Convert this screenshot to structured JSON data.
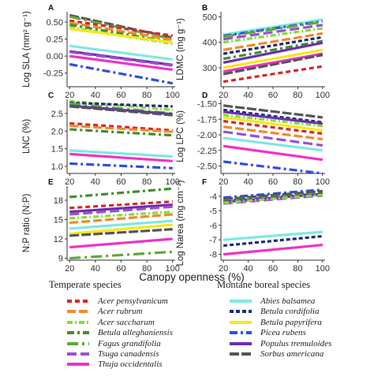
{
  "figure": {
    "xlabel": "Canopy openness (%)"
  },
  "legend": {
    "groups": [
      {
        "title": "Temperate species",
        "species": [
          "Acer pensylvanicum",
          "Acer rubrum",
          "Acer saccharum",
          "Betula alleghaniensis",
          "Fagus grandifolia",
          "Tsuga canadensis",
          "Thuja occidentalis"
        ]
      },
      {
        "title": "Montane boreal species",
        "species": [
          "Abies balsamea",
          "Betula cordifolia",
          "Betula papyrifera",
          "Picea rubens",
          "Populus tremuloides",
          "Sorbus americana"
        ]
      }
    ]
  },
  "styles": {
    "Acer pensylvanicum": {
      "color": "#d62728",
      "dash": "6,4"
    },
    "Acer rubrum": {
      "color": "#f08a2b",
      "dash": "11,4"
    },
    "Acer saccharum": {
      "color": "#7fe034",
      "dash": "7,3,2,3"
    },
    "Betula alleghaniensis": {
      "color": "#3f8f2a",
      "dash": "9,4,3,4"
    },
    "Fagus grandifolia": {
      "color": "#5fa83a",
      "dash": "14,5,3,5"
    },
    "Tsuga canadensis": {
      "color": "#9b4fd1",
      "dash": "12,5"
    },
    "Thuja occidentalis": {
      "color": "#f032c8",
      "dash": ""
    },
    "Abies balsamea": {
      "color": "#7fe8e0",
      "dash": ""
    },
    "Betula cordifolia": {
      "color": "#1f2a7a",
      "dash": "5,3"
    },
    "Betula papyrifera": {
      "color": "#f7e81a",
      "dash": ""
    },
    "Picea rubens": {
      "color": "#2f4fe0",
      "dash": "10,4,3,4"
    },
    "Populus tremuloides": {
      "color": "#6a2fb0",
      "dash": ""
    },
    "Sorbus americana": {
      "color": "#555555",
      "dash": "12,3"
    }
  },
  "chart_data": [
    {
      "type": "line",
      "panel": "A",
      "ylabel": "Log SLA (mm² g⁻¹)",
      "ylim": [
        -0.45,
        0.65
      ],
      "yticks": [
        "-0.25",
        "0.00",
        "0.25",
        "0.50"
      ],
      "xlim": [
        18,
        102
      ],
      "xticks": [
        "20",
        "40",
        "60",
        "80",
        "100"
      ],
      "series": [
        {
          "name": "Sorbus americana",
          "x": [
            20,
            100
          ],
          "y": [
            0.6,
            0.27
          ]
        },
        {
          "name": "Fagus grandifolia",
          "x": [
            20,
            100
          ],
          "y": [
            0.58,
            0.25
          ]
        },
        {
          "name": "Acer pensylvanicum",
          "x": [
            20,
            100
          ],
          "y": [
            0.52,
            0.3
          ]
        },
        {
          "name": "Acer rubrum",
          "x": [
            20,
            100
          ],
          "y": [
            0.49,
            0.24
          ]
        },
        {
          "name": "Betula alleghaniensis",
          "x": [
            20,
            100
          ],
          "y": [
            0.46,
            0.2
          ]
        },
        {
          "name": "Acer saccharum",
          "x": [
            20,
            100
          ],
          "y": [
            0.42,
            0.18
          ]
        },
        {
          "name": "Betula papyrifera",
          "x": [
            20,
            100
          ],
          "y": [
            0.4,
            0.2
          ]
        },
        {
          "name": "Abies balsamea",
          "x": [
            20,
            100
          ],
          "y": [
            0.15,
            -0.05
          ]
        },
        {
          "name": "Populus tremuloides",
          "x": [
            20,
            100
          ],
          "y": [
            0.07,
            -0.13
          ]
        },
        {
          "name": "Tsuga canadensis",
          "x": [
            20,
            100
          ],
          "y": [
            0.06,
            -0.14
          ]
        },
        {
          "name": "Thuja occidentalis",
          "x": [
            20,
            100
          ],
          "y": [
            0.0,
            -0.2
          ]
        },
        {
          "name": "Picea rubens",
          "x": [
            20,
            100
          ],
          "y": [
            -0.12,
            -0.4
          ]
        }
      ]
    },
    {
      "type": "line",
      "panel": "B",
      "ylabel": "LDMC (mg g⁻¹)",
      "ylim": [
        225,
        520
      ],
      "yticks": [
        "300",
        "400",
        "500"
      ],
      "xlim": [
        18,
        102
      ],
      "xticks": [
        "20",
        "40",
        "60",
        "80",
        "100"
      ],
      "series": [
        {
          "name": "Abies balsamea",
          "x": [
            20,
            100
          ],
          "y": [
            430,
            490
          ]
        },
        {
          "name": "Picea rubens",
          "x": [
            20,
            100
          ],
          "y": [
            425,
            483
          ]
        },
        {
          "name": "Fagus grandifolia",
          "x": [
            20,
            100
          ],
          "y": [
            422,
            480
          ]
        },
        {
          "name": "Tsuga canadensis",
          "x": [
            20,
            100
          ],
          "y": [
            412,
            468
          ]
        },
        {
          "name": "Acer saccharum",
          "x": [
            20,
            100
          ],
          "y": [
            400,
            455
          ]
        },
        {
          "name": "Acer rubrum",
          "x": [
            20,
            100
          ],
          "y": [
            370,
            435
          ]
        },
        {
          "name": "Betula cordifolia",
          "x": [
            20,
            100
          ],
          "y": [
            355,
            420
          ]
        },
        {
          "name": "Betula alleghaniensis",
          "x": [
            20,
            100
          ],
          "y": [
            335,
            405
          ]
        },
        {
          "name": "Populus tremuloides",
          "x": [
            20,
            100
          ],
          "y": [
            320,
            398
          ]
        },
        {
          "name": "Betula papyrifera",
          "x": [
            20,
            100
          ],
          "y": [
            300,
            370
          ]
        },
        {
          "name": "Thuja occidentalis",
          "x": [
            20,
            100
          ],
          "y": [
            285,
            355
          ]
        },
        {
          "name": "Sorbus americana",
          "x": [
            20,
            100
          ],
          "y": [
            275,
            350
          ]
        },
        {
          "name": "Acer pensylvanicum",
          "x": [
            20,
            100
          ],
          "y": [
            245,
            305
          ]
        }
      ]
    },
    {
      "type": "line",
      "panel": "C",
      "ylabel": "LNC (%)",
      "ylim": [
        0.8,
        2.9
      ],
      "yticks": [
        "1.0",
        "1.5",
        "2.0",
        "2.5"
      ],
      "xlim": [
        18,
        102
      ],
      "xticks": [
        "20",
        "40",
        "60",
        "80",
        "100"
      ],
      "series": [
        {
          "name": "Acer saccharum",
          "x": [
            20,
            100
          ],
          "y": [
            2.85,
            2.6
          ]
        },
        {
          "name": "Betula cordifolia",
          "x": [
            20,
            100
          ],
          "y": [
            2.8,
            2.7
          ]
        },
        {
          "name": "Fagus grandifolia",
          "x": [
            20,
            100
          ],
          "y": [
            2.78,
            2.5
          ]
        },
        {
          "name": "Populus tremuloides",
          "x": [
            20,
            100
          ],
          "y": [
            2.72,
            2.48
          ]
        },
        {
          "name": "Sorbus americana",
          "x": [
            20,
            100
          ],
          "y": [
            2.7,
            2.45
          ]
        },
        {
          "name": "Acer pensylvanicum",
          "x": [
            20,
            100
          ],
          "y": [
            2.22,
            2.02
          ]
        },
        {
          "name": "Acer rubrum",
          "x": [
            20,
            100
          ],
          "y": [
            2.15,
            1.98
          ]
        },
        {
          "name": "Betula alleghaniensis",
          "x": [
            20,
            100
          ],
          "y": [
            2.05,
            1.88
          ]
        },
        {
          "name": "Abies balsamea",
          "x": [
            20,
            100
          ],
          "y": [
            1.45,
            1.28
          ]
        },
        {
          "name": "Thuja occidentalis",
          "x": [
            20,
            100
          ],
          "y": [
            1.35,
            1.15
          ]
        },
        {
          "name": "Picea rubens",
          "x": [
            20,
            100
          ],
          "y": [
            1.08,
            0.95
          ]
        }
      ]
    },
    {
      "type": "line",
      "panel": "D",
      "ylabel": "Log LPC (%)",
      "ylim": [
        -2.62,
        -1.43
      ],
      "yticks": [
        "-1.50",
        "-1.75",
        "-2.00",
        "-2.25",
        "-2.50"
      ],
      "xlim": [
        18,
        102
      ],
      "xticks": [
        "20",
        "40",
        "60",
        "80",
        "100"
      ],
      "series": [
        {
          "name": "Sorbus americana",
          "x": [
            20,
            100
          ],
          "y": [
            -1.53,
            -1.72
          ]
        },
        {
          "name": "Betula cordifolia",
          "x": [
            20,
            100
          ],
          "y": [
            -1.6,
            -1.8
          ]
        },
        {
          "name": "Populus tremuloides",
          "x": [
            20,
            100
          ],
          "y": [
            -1.63,
            -1.82
          ]
        },
        {
          "name": "Acer saccharum",
          "x": [
            20,
            100
          ],
          "y": [
            -1.68,
            -1.86
          ]
        },
        {
          "name": "Betula papyrifera",
          "x": [
            20,
            100
          ],
          "y": [
            -1.72,
            -1.93
          ]
        },
        {
          "name": "Acer pensylvanicum",
          "x": [
            20,
            100
          ],
          "y": [
            -1.78,
            -1.98
          ]
        },
        {
          "name": "Acer rubrum",
          "x": [
            20,
            100
          ],
          "y": [
            -1.87,
            -2.07
          ]
        },
        {
          "name": "Tsuga canadensis",
          "x": [
            20,
            100
          ],
          "y": [
            -1.95,
            -2.17
          ]
        },
        {
          "name": "Abies balsamea",
          "x": [
            20,
            100
          ],
          "y": [
            -2.05,
            -2.25
          ]
        },
        {
          "name": "Thuja occidentalis",
          "x": [
            20,
            100
          ],
          "y": [
            -2.18,
            -2.4
          ]
        },
        {
          "name": "Picea rubens",
          "x": [
            20,
            100
          ],
          "y": [
            -2.43,
            -2.62
          ]
        }
      ]
    },
    {
      "type": "line",
      "panel": "E",
      "ylabel": "N:P ratio (N:P)",
      "ylim": [
        8.7,
        20.2
      ],
      "yticks": [
        "9",
        "12",
        "15",
        "18"
      ],
      "xlim": [
        18,
        102
      ],
      "xticks": [
        "20",
        "40",
        "60",
        "80",
        "100"
      ],
      "series": [
        {
          "name": "Betula alleghaniensis",
          "x": [
            20,
            100
          ],
          "y": [
            18.5,
            19.8
          ]
        },
        {
          "name": "Acer pensylvanicum",
          "x": [
            20,
            100
          ],
          "y": [
            16.8,
            17.8
          ]
        },
        {
          "name": "Populus tremuloides",
          "x": [
            20,
            100
          ],
          "y": [
            16.2,
            17.3
          ]
        },
        {
          "name": "Tsuga canadensis",
          "x": [
            20,
            100
          ],
          "y": [
            15.8,
            17.0
          ]
        },
        {
          "name": "Acer saccharum",
          "x": [
            20,
            100
          ],
          "y": [
            15.2,
            16.2
          ]
        },
        {
          "name": "Acer rubrum",
          "x": [
            20,
            100
          ],
          "y": [
            14.5,
            15.8
          ]
        },
        {
          "name": "Abies balsamea",
          "x": [
            20,
            100
          ],
          "y": [
            13.6,
            14.8
          ]
        },
        {
          "name": "Betula papyrifera",
          "x": [
            20,
            100
          ],
          "y": [
            12.8,
            14.2
          ]
        },
        {
          "name": "Sorbus americana",
          "x": [
            20,
            100
          ],
          "y": [
            12.5,
            13.5
          ]
        },
        {
          "name": "Thuja occidentalis",
          "x": [
            20,
            100
          ],
          "y": [
            10.7,
            12.0
          ]
        },
        {
          "name": "Fagus grandifolia",
          "x": [
            20,
            100
          ],
          "y": [
            9.0,
            10.0
          ]
        }
      ]
    },
    {
      "type": "line",
      "panel": "F",
      "ylabel": "Log Narea (mg cm⁻²)",
      "ylim": [
        -8.4,
        -3.3
      ],
      "yticks": [
        "-4",
        "-5",
        "-6",
        "-7",
        "-8"
      ],
      "xlim": [
        18,
        102
      ],
      "xticks": [
        "20",
        "40",
        "60",
        "80",
        "100"
      ],
      "series": [
        {
          "name": "Picea rubens",
          "x": [
            20,
            100
          ],
          "y": [
            -4.1,
            -3.55
          ]
        },
        {
          "name": "Sorbus americana",
          "x": [
            20,
            100
          ],
          "y": [
            -4.2,
            -3.65
          ]
        },
        {
          "name": "Betula alleghaniensis",
          "x": [
            20,
            100
          ],
          "y": [
            -4.3,
            -3.8
          ]
        },
        {
          "name": "Populus tremuloides",
          "x": [
            20,
            100
          ],
          "y": [
            -4.4,
            -3.85
          ]
        },
        {
          "name": "Tsuga canadensis",
          "x": [
            20,
            100
          ],
          "y": [
            -4.5,
            -3.95
          ]
        },
        {
          "name": "Acer saccharum",
          "x": [
            20,
            100
          ],
          "y": [
            -4.45,
            -3.9
          ]
        },
        {
          "name": "Abies balsamea",
          "x": [
            20,
            100
          ],
          "y": [
            -7.0,
            -6.45
          ]
        },
        {
          "name": "Betula cordifolia",
          "x": [
            20,
            100
          ],
          "y": [
            -7.4,
            -6.75
          ]
        },
        {
          "name": "Thuja occidentalis",
          "x": [
            20,
            100
          ],
          "y": [
            -8.0,
            -7.35
          ]
        }
      ]
    }
  ]
}
